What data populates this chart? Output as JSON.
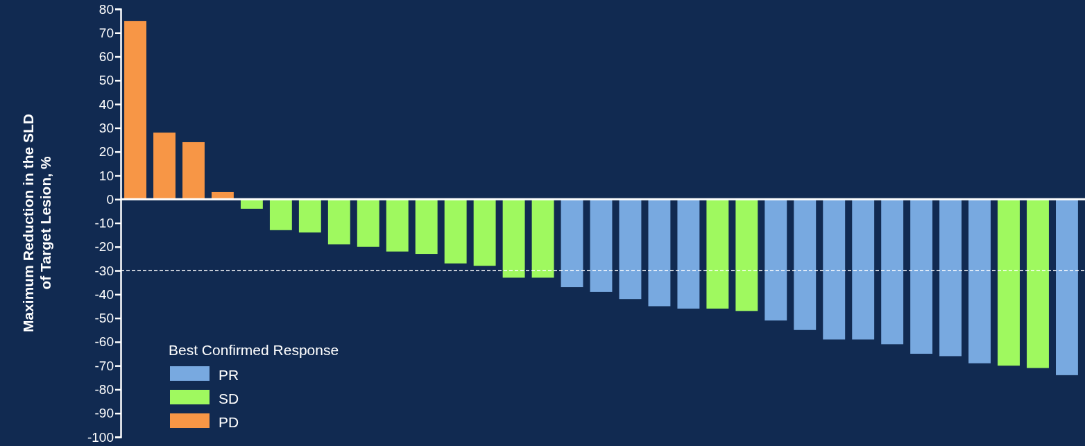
{
  "chart_data": {
    "type": "bar",
    "ylabel": "Maximum Reduction in the SLD\nof Target Lesion, %",
    "legend_title": "Best Confirmed Response",
    "categories": [
      null,
      null,
      null,
      null,
      null,
      null,
      null,
      null,
      null,
      null,
      null,
      null,
      null,
      null,
      null,
      null,
      null,
      null,
      null,
      null,
      null,
      null,
      null,
      null,
      null,
      null,
      null,
      null,
      null,
      null,
      null,
      null,
      null
    ],
    "series": [
      {
        "name": "PR",
        "color": "#78a9e0",
        "values": [
          null,
          null,
          null,
          null,
          null,
          null,
          null,
          null,
          null,
          null,
          null,
          null,
          null,
          null,
          null,
          -37,
          -39,
          -42,
          -45,
          -46,
          null,
          null,
          -51,
          -55,
          -59,
          -59,
          -61,
          -65,
          -66,
          -69,
          null,
          null,
          -74
        ]
      },
      {
        "name": "SD",
        "color": "#9ff95f",
        "values": [
          null,
          null,
          null,
          null,
          -4,
          -13,
          -14,
          -19,
          -20,
          -22,
          -23,
          -27,
          -28,
          -33,
          -33,
          null,
          null,
          null,
          null,
          null,
          -46,
          -47,
          null,
          null,
          null,
          null,
          null,
          null,
          null,
          null,
          -70,
          -71,
          null
        ]
      },
      {
        "name": "PD",
        "color": "#f79646",
        "values": [
          75,
          28,
          24,
          3,
          null,
          null,
          null,
          null,
          null,
          null,
          null,
          null,
          null,
          null,
          null,
          null,
          null,
          null,
          null,
          null,
          null,
          null,
          null,
          null,
          null,
          null,
          null,
          null,
          null,
          null,
          null,
          null,
          null
        ]
      }
    ],
    "ylim": [
      -100,
      80
    ],
    "yticks": [
      -100,
      -90,
      -80,
      -70,
      -60,
      -50,
      -40,
      -30,
      -20,
      -10,
      0,
      10,
      20,
      30,
      40,
      50,
      60,
      70,
      80
    ],
    "ref_lines": [
      {
        "axis": "y",
        "value": -30,
        "color": "#ffffff",
        "line_style": "dashed"
      }
    ],
    "legend": "bottom left",
    "grid": false,
    "tick_labels": "y"
  }
}
